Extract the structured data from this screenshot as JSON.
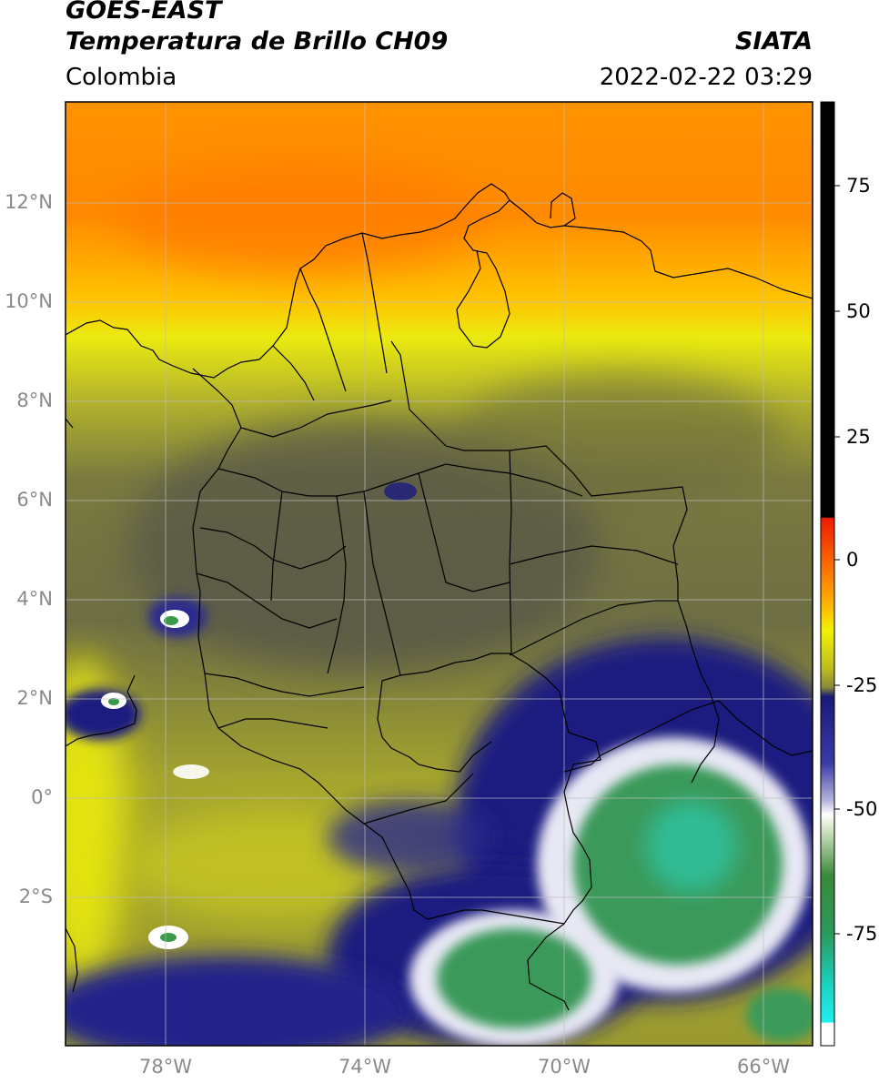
{
  "header": {
    "satellite": "GOES-EAST",
    "product": "Temperatura de Brillo CH09",
    "org": "SIATA",
    "region": "Colombia",
    "datetime": "2022-02-22 03:29"
  },
  "map": {
    "lon_range": [
      -80,
      -65
    ],
    "lat_range": [
      -5,
      14
    ],
    "lat_ticks": [
      "12°N",
      "10°N",
      "8°N",
      "6°N",
      "4°N",
      "2°N",
      "0°",
      "2°S"
    ],
    "lon_ticks": [
      "78°W",
      "74°W",
      "70°W",
      "66°W"
    ],
    "gridlines": true
  },
  "colorbar": {
    "ticks": [
      "75",
      "50",
      "25",
      "0",
      "-25",
      "-50",
      "-75"
    ],
    "range": [
      -95,
      90
    ],
    "colors": {
      "saturated": "#000000",
      "warm_top": "#f02000",
      "orange": "#ff9a00",
      "yellow": "#e6e610",
      "olive": "#8a8a3a",
      "gray": "#5a5a5a",
      "navy": "#1a1a8a",
      "white": "#ffffff",
      "green": "#3a9a4a",
      "cyan": "#20e6e6"
    }
  }
}
